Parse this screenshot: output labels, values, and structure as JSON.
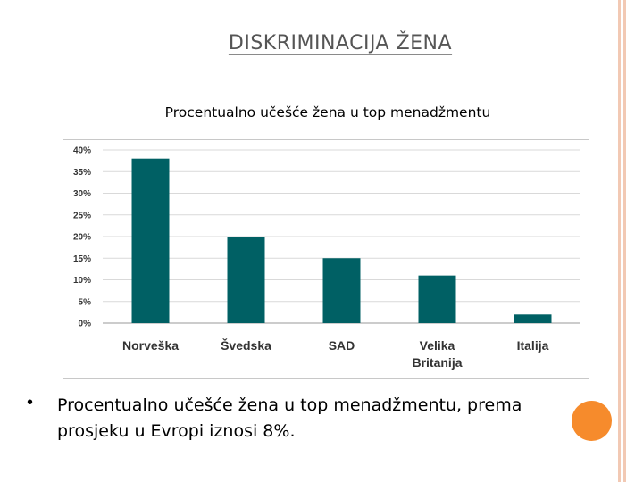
{
  "slide": {
    "title": "DISKRIMINACIJA ŽENA",
    "chart_caption": "Procentualno učešće žena u top menadžmentu",
    "bullet_text": "Procentualno učešće žena u top menadžmentu, prema prosjeku u Evropi iznosi 8%.",
    "bullet_symbol": "•"
  },
  "colors": {
    "bar": "#006064",
    "accent_circle": "#f68b2c",
    "frame": "#f2c9b4"
  },
  "chart_data": {
    "type": "bar",
    "title": "",
    "xlabel": "",
    "ylabel": "",
    "categories": [
      "Norveška",
      "Švedska",
      "SAD",
      "Velika Britanija",
      "Italija"
    ],
    "category_lines": [
      [
        "Norveška"
      ],
      [
        "Švedska"
      ],
      [
        "SAD"
      ],
      [
        "Velika",
        "Britanija"
      ],
      [
        "Italija"
      ]
    ],
    "values": [
      38,
      20,
      15,
      11,
      2
    ],
    "ylim": [
      0,
      40
    ],
    "yticks": [
      "0%",
      "5%",
      "10%",
      "15%",
      "20%",
      "25%",
      "30%",
      "35%",
      "40%"
    ],
    "grid": true,
    "legend": "none"
  }
}
